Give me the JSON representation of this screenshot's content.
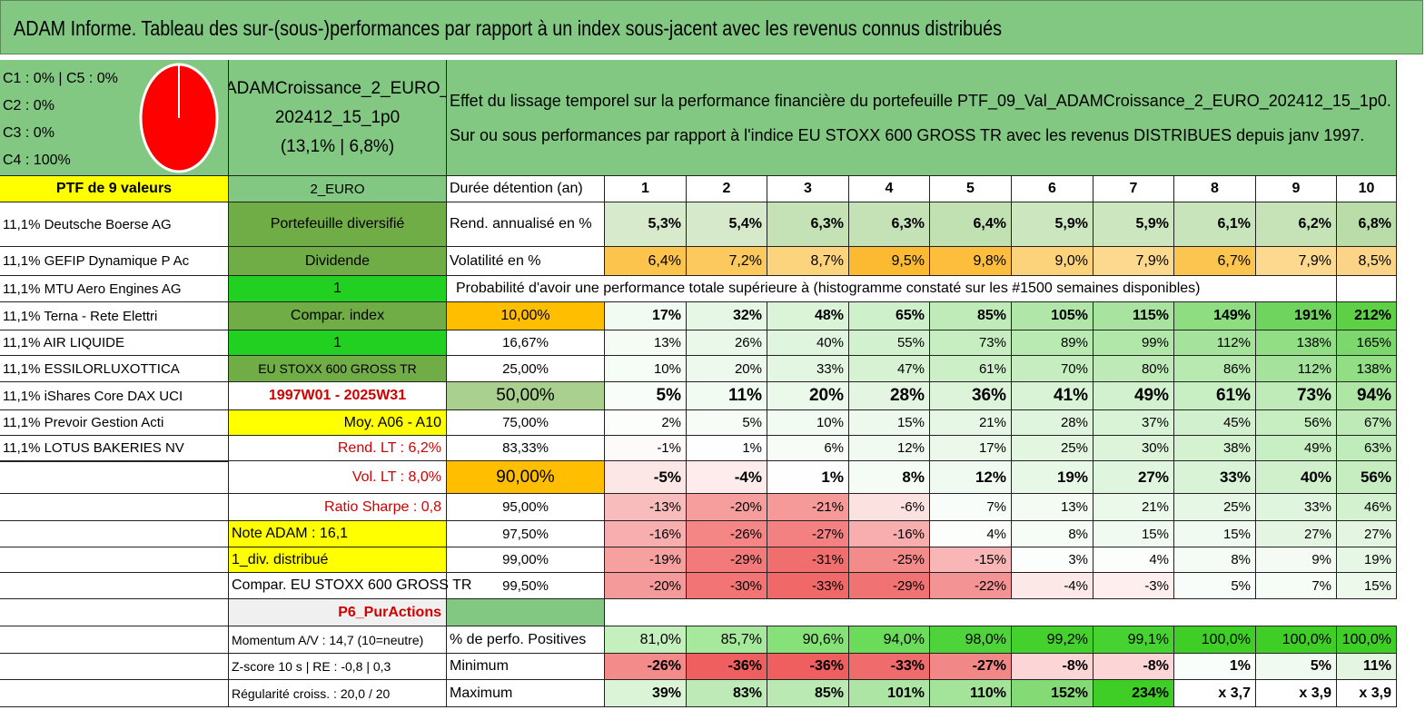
{
  "title": "ADAM Informe. Tableau des sur-(sous-)performances par rapport à un index sous-jacent avec les revenus connus distribués",
  "pie": {
    "lines": [
      "C1 : 0% | C5 : 0%",
      "C2 : 0%",
      "C3 : 0%",
      "C4 : 100%"
    ],
    "color": "#ff0000"
  },
  "fund": {
    "name1": "ADAMCroissance_2_EURO_",
    "name2": "202412_15_1p0",
    "stats": "(13,1% | 6,8%)"
  },
  "description": {
    "line1": "Effet du lissage temporel sur la performance financière du portefeuille PTF_09_Val_ADAMCroissance_2_EURO_202412_15_1p0.",
    "line2": "Sur ou sous performances par rapport à l'indice EU STOXX 600 GROSS TR avec les revenus DISTRIBUES depuis janv 1997."
  },
  "ptf_header": "PTF de 9 valeurs",
  "holdings": [
    "11,1% Deutsche Boerse AG",
    "11,1% GEFIP Dynamique P Ac",
    "11,1% MTU Aero Engines AG",
    "11,1% Terna - Rete Elettri",
    "11,1% AIR LIQUIDE",
    "11,1% ESSILORLUXOTTICA",
    "11,1% iShares Core DAX UCI",
    "11,1% Prevoir Gestion Acti",
    "11,1% LOTUS BAKERIES NV"
  ],
  "info": {
    "currency": "2_EURO",
    "diversified": "Portefeuille diversifié",
    "dividend": "Dividende",
    "one_a": "1",
    "compar_index": "Compar. index",
    "one_b": "1",
    "index_name": "EU STOXX 600 GROSS TR",
    "period": "1997W01 - 2025W31",
    "moy": "Moy. A06 - A10",
    "rend_lt": "Rend. LT : 6,2%",
    "vol_lt": "Vol. LT : 8,0%",
    "sharpe": "Ratio Sharpe : 0,8",
    "note": "Note ADAM : 16,1",
    "div": "1_div. distribué",
    "compar_full": "Compar. EU STOXX 600 GROSS TR",
    "p6": "P6_PurActions",
    "momentum": "Momentum A/V : 14,7 (10=neutre)",
    "zscore": "Z-score 10 s | RE : -0,8 | 0,3",
    "regularite": "Régularité croiss. : 20,0 / 20"
  },
  "labels": {
    "duree": "Durée détention (an)",
    "rend": "Rend. annualisé en %",
    "vol": "Volatilité en %",
    "proba": "Probabilité d'avoir une performance totale supérieure à (histogramme constaté sur les #1500 semaines disponibles)",
    "positives": "% de perfo. Positives",
    "minimum": "Minimum",
    "maximum": "Maximum"
  },
  "years": [
    "1",
    "2",
    "3",
    "4",
    "5",
    "6",
    "7",
    "8",
    "9",
    "10"
  ],
  "rend": [
    "5,3%",
    "5,4%",
    "6,3%",
    "6,3%",
    "6,4%",
    "5,9%",
    "5,9%",
    "6,1%",
    "6,2%",
    "6,8%"
  ],
  "vol": [
    "6,4%",
    "7,2%",
    "8,7%",
    "9,5%",
    "9,8%",
    "9,0%",
    "7,9%",
    "6,7%",
    "7,9%",
    "8,5%"
  ],
  "quantiles": [
    {
      "p": "10,00%",
      "v": [
        "17%",
        "32%",
        "48%",
        "65%",
        "85%",
        "105%",
        "115%",
        "149%",
        "191%",
        "212%"
      ]
    },
    {
      "p": "16,67%",
      "v": [
        "13%",
        "26%",
        "40%",
        "55%",
        "73%",
        "89%",
        "99%",
        "112%",
        "138%",
        "165%"
      ]
    },
    {
      "p": "25,00%",
      "v": [
        "10%",
        "20%",
        "33%",
        "47%",
        "61%",
        "70%",
        "80%",
        "86%",
        "112%",
        "138%"
      ]
    },
    {
      "p": "50,00%",
      "v": [
        "5%",
        "11%",
        "20%",
        "28%",
        "36%",
        "41%",
        "49%",
        "61%",
        "73%",
        "94%"
      ]
    },
    {
      "p": "75,00%",
      "v": [
        "2%",
        "5%",
        "10%",
        "15%",
        "21%",
        "28%",
        "37%",
        "45%",
        "56%",
        "67%"
      ]
    },
    {
      "p": "83,33%",
      "v": [
        "-1%",
        "1%",
        "6%",
        "12%",
        "17%",
        "25%",
        "30%",
        "38%",
        "49%",
        "63%"
      ]
    },
    {
      "p": "90,00%",
      "v": [
        "-5%",
        "-4%",
        "1%",
        "8%",
        "12%",
        "19%",
        "27%",
        "33%",
        "40%",
        "56%"
      ]
    },
    {
      "p": "95,00%",
      "v": [
        "-13%",
        "-20%",
        "-21%",
        "-6%",
        "7%",
        "13%",
        "21%",
        "25%",
        "33%",
        "46%"
      ]
    },
    {
      "p": "97,50%",
      "v": [
        "-16%",
        "-26%",
        "-27%",
        "-16%",
        "4%",
        "8%",
        "15%",
        "15%",
        "27%",
        "27%"
      ]
    },
    {
      "p": "99,00%",
      "v": [
        "-19%",
        "-29%",
        "-31%",
        "-25%",
        "-15%",
        "3%",
        "4%",
        "8%",
        "9%",
        "19%"
      ]
    },
    {
      "p": "99,50%",
      "v": [
        "-20%",
        "-30%",
        "-33%",
        "-29%",
        "-22%",
        "-4%",
        "-3%",
        "5%",
        "7%",
        "15%"
      ]
    }
  ],
  "positives": [
    "81,0%",
    "85,7%",
    "90,6%",
    "94,0%",
    "98,0%",
    "99,2%",
    "99,1%",
    "100,0%",
    "100,0%",
    "100,0%"
  ],
  "minimum": [
    "-26%",
    "-36%",
    "-36%",
    "-33%",
    "-27%",
    "-8%",
    "-8%",
    "1%",
    "5%",
    "11%"
  ],
  "maximum": [
    "39%",
    "83%",
    "85%",
    "101%",
    "110%",
    "152%",
    "234%",
    "x 3,7",
    "x 3,9",
    "x 3,9"
  ],
  "colors": {
    "header_green": "#82c882",
    "bright_green": "#22d022",
    "yellow": "#ffff00",
    "orange": "#ffbf00",
    "red_text": "#d00000"
  }
}
